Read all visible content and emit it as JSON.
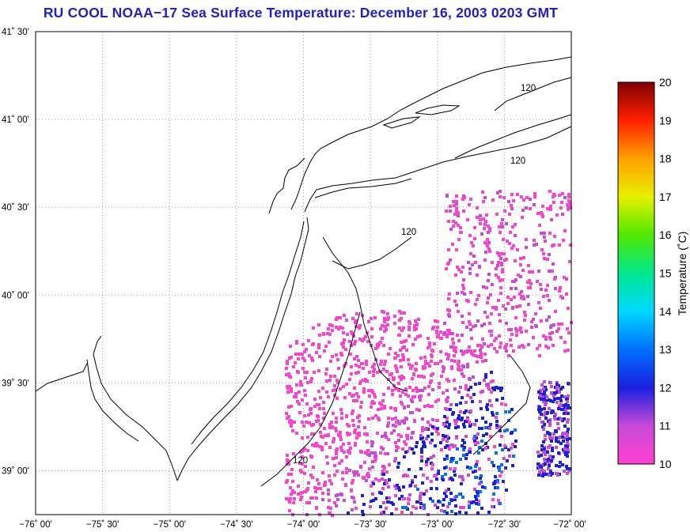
{
  "title": "RU COOL  NOAA−17  Sea Surface Temperature:  December 16, 2003 0203 GMT",
  "latitude_labels": [
    "41˚ 30'",
    "41˚ 00'",
    "40˚ 30'",
    "40˚ 00'",
    "39˚ 30'",
    "39˚ 00'"
  ],
  "longitude_labels": [
    "−76˚ 00'",
    "−75˚ 30'",
    "−75˚ 00'",
    "−74˚ 30'",
    "−74˚ 00'",
    "−73˚ 30'",
    "−73˚ 00'",
    "−72˚ 30'",
    "−72˚ 00'"
  ],
  "isobath_label": "120",
  "colorbar": {
    "title": "Temperature (˚C)",
    "ticks": [
      "20",
      "19",
      "18",
      "17",
      "16",
      "15",
      "14",
      "13",
      "12",
      "11",
      "10"
    ],
    "range": [
      10,
      20
    ],
    "colors": [
      "#ff40d0",
      "#c84ad8",
      "#1a20e0",
      "#0070ff",
      "#00d8ff",
      "#00e890",
      "#50e800",
      "#e8f000",
      "#ffa000",
      "#ff2000",
      "#800000"
    ]
  },
  "map": {
    "lon_range": [
      -76.0,
      -72.0
    ],
    "lat_range": [
      38.75,
      41.5
    ],
    "land_color": "#ffffff",
    "coastline_color": "#000000",
    "grid_style": "dotted"
  }
}
